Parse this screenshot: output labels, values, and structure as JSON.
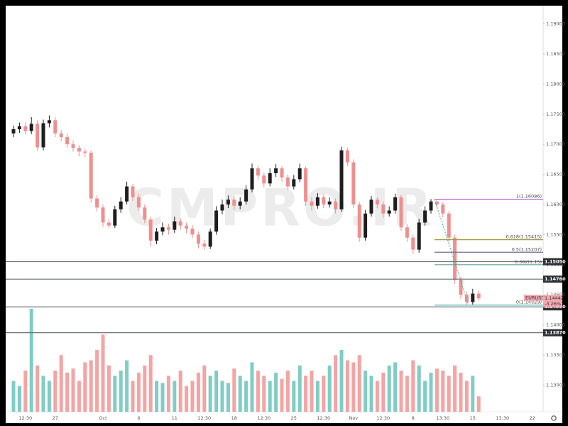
{
  "chart_data": {
    "type": "candlestick",
    "watermark": "CMPRO.IR",
    "up_color": "#1e1e1e",
    "down_color": "#ef8f8f",
    "volume_up_color": "#7fcdc4",
    "volume_down_color": "#f5a3a3",
    "categories": [
      null,
      null,
      "12:30",
      null,
      null,
      null,
      null,
      "27",
      null,
      null,
      null,
      null,
      null,
      null,
      null,
      "Oct",
      null,
      null,
      null,
      null,
      null,
      "6",
      null,
      null,
      null,
      null,
      null,
      "11",
      null,
      null,
      null,
      null,
      "12:30",
      null,
      null,
      null,
      null,
      "18",
      null,
      null,
      null,
      null,
      "12:30",
      null,
      null,
      null,
      null,
      "25",
      null,
      null,
      null,
      null,
      "12:30",
      null,
      null,
      null,
      null,
      "Nov",
      null,
      null,
      null,
      null,
      "12:30",
      null,
      null,
      null,
      null,
      "8",
      null,
      null,
      null,
      null,
      "13:30",
      null,
      null,
      null,
      null,
      "15",
      null,
      null,
      null,
      null,
      "13:30",
      null,
      null,
      null,
      null,
      "22"
    ],
    "open": [
      1.1718,
      1.1725,
      1.173,
      1.1722,
      1.1734,
      1.1695,
      1.1735,
      1.174,
      1.1718,
      1.1712,
      1.17,
      1.1694,
      1.1688,
      1.1686,
      1.161,
      1.1595,
      1.157,
      1.1565,
      1.1592,
      1.1605,
      1.163,
      1.1612,
      1.1595,
      1.1575,
      1.154,
      1.1555,
      1.1562,
      1.1558,
      1.1572,
      1.1565,
      1.156,
      1.155,
      1.1535,
      1.153,
      1.1555,
      1.159,
      1.16,
      1.1608,
      1.1598,
      1.1605,
      1.1625,
      1.166,
      1.1648,
      1.1635,
      1.1652,
      1.166,
      1.1645,
      1.163,
      1.1642,
      1.166,
      1.1605,
      1.1598,
      1.1612,
      1.16,
      1.1605,
      1.1592,
      1.169,
      1.167,
      1.16,
      1.1545,
      1.1585,
      1.1608,
      1.16,
      1.1585,
      1.159,
      1.1612,
      1.1562,
      1.1545,
      1.1525,
      1.157,
      1.159,
      1.1605,
      1.16,
      1.1585,
      1.1545,
      1.1475,
      1.145,
      1.1438,
      1.1452,
      null,
      null,
      null,
      null,
      null,
      null,
      null,
      null,
      null
    ],
    "high": [
      1.1731,
      1.1736,
      1.1737,
      1.1745,
      1.174,
      1.1741,
      1.1748,
      1.1745,
      1.1724,
      1.1718,
      1.1706,
      1.1699,
      1.1693,
      1.169,
      1.1616,
      1.16,
      1.1576,
      1.1598,
      1.1612,
      1.1638,
      1.1634,
      1.1618,
      1.16,
      1.158,
      1.1561,
      1.157,
      1.1568,
      1.158,
      1.1577,
      1.157,
      1.1566,
      1.1555,
      1.1541,
      1.156,
      1.1597,
      1.1608,
      1.1615,
      1.1613,
      1.1612,
      1.1632,
      1.1668,
      1.1665,
      1.1653,
      1.166,
      1.1667,
      1.1664,
      1.165,
      1.1649,
      1.1668,
      1.1663,
      1.1612,
      1.1619,
      1.1617,
      1.1612,
      1.161,
      1.1696,
      1.1694,
      1.1675,
      1.1604,
      1.1591,
      1.1614,
      1.1612,
      1.1605,
      1.1597,
      1.1618,
      1.1616,
      1.1567,
      1.155,
      1.1576,
      1.1597,
      1.1609,
      1.1608,
      1.1604,
      1.1589,
      1.155,
      1.148,
      1.1455,
      1.146,
      1.1458,
      null,
      null,
      null,
      null,
      null,
      null,
      null,
      null,
      null
    ],
    "low": [
      1.1712,
      1.1719,
      1.1716,
      1.1717,
      1.1689,
      1.169,
      1.1728,
      1.1712,
      1.1705,
      1.1694,
      1.1688,
      1.168,
      1.1679,
      1.1603,
      1.1588,
      1.1563,
      1.156,
      1.1561,
      1.1586,
      1.16,
      1.1606,
      1.1589,
      1.1569,
      1.153,
      1.1534,
      1.1549,
      1.155,
      1.1553,
      1.1558,
      1.1552,
      1.1544,
      1.1527,
      1.1524,
      1.1526,
      1.155,
      1.1584,
      1.1594,
      1.1591,
      1.1592,
      1.16,
      1.162,
      1.1641,
      1.1628,
      1.163,
      1.1646,
      1.1638,
      1.1624,
      1.1625,
      1.1637,
      1.1598,
      1.159,
      1.1593,
      1.1594,
      1.1595,
      1.1585,
      1.1588,
      1.1664,
      1.1594,
      1.1538,
      1.154,
      1.158,
      1.1594,
      1.1578,
      1.158,
      1.1585,
      1.1556,
      1.1538,
      1.1518,
      1.152,
      1.1565,
      1.1585,
      1.1594,
      1.1578,
      1.1538,
      1.1468,
      1.1443,
      1.1433,
      1.1434,
      1.144,
      null,
      null,
      null,
      null,
      null,
      null,
      null,
      null,
      null
    ],
    "close": [
      1.1725,
      1.173,
      1.1722,
      1.1734,
      1.1695,
      1.1735,
      1.174,
      1.1718,
      1.1712,
      1.17,
      1.1694,
      1.1688,
      1.1686,
      1.161,
      1.1595,
      1.157,
      1.1565,
      1.1592,
      1.1605,
      1.163,
      1.1612,
      1.1595,
      1.1575,
      1.154,
      1.1555,
      1.1562,
      1.1558,
      1.1572,
      1.1565,
      1.156,
      1.155,
      1.1535,
      1.153,
      1.1555,
      1.159,
      1.16,
      1.1608,
      1.1598,
      1.1605,
      1.1625,
      1.166,
      1.1648,
      1.1635,
      1.1652,
      1.166,
      1.1645,
      1.163,
      1.1642,
      1.166,
      1.1605,
      1.1598,
      1.1612,
      1.16,
      1.1605,
      1.1592,
      1.169,
      1.167,
      1.16,
      1.1545,
      1.1585,
      1.1608,
      1.16,
      1.1585,
      1.159,
      1.1612,
      1.1562,
      1.1545,
      1.1525,
      1.157,
      1.159,
      1.1605,
      1.16,
      1.1585,
      1.1545,
      1.1475,
      1.145,
      1.1438,
      1.1452,
      1.1444,
      null,
      null,
      null,
      null,
      null,
      null,
      null,
      null,
      null
    ],
    "volume": [
      30,
      25,
      40,
      100,
      45,
      35,
      30,
      40,
      55,
      38,
      42,
      30,
      48,
      50,
      60,
      75,
      45,
      35,
      40,
      50,
      30,
      38,
      45,
      55,
      30,
      28,
      35,
      30,
      40,
      25,
      30,
      38,
      45,
      35,
      40,
      30,
      28,
      42,
      35,
      30,
      48,
      40,
      35,
      30,
      38,
      32,
      40,
      30,
      45,
      35,
      40,
      30,
      35,
      45,
      55,
      60,
      50,
      48,
      55,
      40,
      35,
      30,
      38,
      45,
      48,
      40,
      35,
      50,
      45,
      30,
      38,
      42,
      40,
      35,
      45,
      38,
      30,
      35,
      15,
      null,
      null,
      null,
      null,
      null,
      null,
      null,
      null,
      null
    ],
    "ylim": [
      1.12557,
      1.19302
    ],
    "yticks": [
      {
        "value": 1.13,
        "label": "1.13000"
      },
      {
        "value": 1.135,
        "label": "1.13500"
      },
      {
        "value": 1.14,
        "label": "1.14000"
      },
      {
        "value": 1.145,
        "label": "1.14500"
      },
      {
        "value": 1.15,
        "label": "1.15000"
      },
      {
        "value": 1.155,
        "label": "1.15500"
      },
      {
        "value": 1.16,
        "label": "1.16000"
      },
      {
        "value": 1.165,
        "label": "1.16500"
      },
      {
        "value": 1.17,
        "label": "1.17000"
      },
      {
        "value": 1.175,
        "label": "1.17500"
      },
      {
        "value": 1.18,
        "label": "1.18000"
      },
      {
        "value": 1.185,
        "label": "1.18500"
      },
      {
        "value": 1.19,
        "label": "1.19000"
      }
    ],
    "levels": [
      {
        "value": 1.1505,
        "label": "1.15050"
      },
      {
        "value": 1.1476,
        "label": "1.14760"
      },
      {
        "value": 1.143,
        "label": "1.14300"
      },
      {
        "value": 1.1387,
        "label": "1.13870"
      }
    ],
    "level_color": "#6b6f7a",
    "fib_levels": [
      {
        "value": 1.16086,
        "label": "1(1.16086)",
        "color": "#b565c8"
      },
      {
        "value": 1.15415,
        "label": "0.618(1.15415)",
        "color": "#9e9a3a"
      },
      {
        "value": 1.15207,
        "label": "0.5(1.15207)",
        "color": "#6d6f96"
      },
      {
        "value": 1.15,
        "label": "0.382(1.15)",
        "color": "#5fa08a"
      },
      {
        "value": 1.14329,
        "label": "0(1.14329)",
        "color": "#4fb8a8"
      }
    ],
    "fib_trend_color": "#2bb3a3",
    "last": {
      "symbol": "EURUSD",
      "price": 1.14442,
      "change": {
        "value": -3.26,
        "label": "-3.26%"
      },
      "color": "#f4a7b0"
    }
  }
}
